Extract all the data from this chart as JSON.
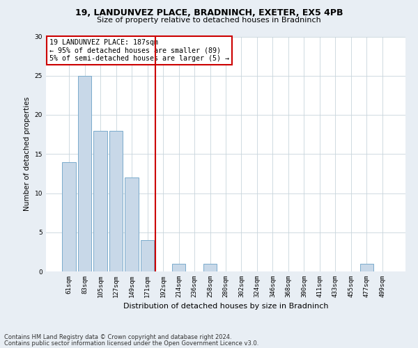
{
  "title1": "19, LANDUNVEZ PLACE, BRADNINCH, EXETER, EX5 4PB",
  "title2": "Size of property relative to detached houses in Bradninch",
  "xlabel": "Distribution of detached houses by size in Bradninch",
  "ylabel": "Number of detached properties",
  "categories": [
    "61sqm",
    "83sqm",
    "105sqm",
    "127sqm",
    "149sqm",
    "171sqm",
    "192sqm",
    "214sqm",
    "236sqm",
    "258sqm",
    "280sqm",
    "302sqm",
    "324sqm",
    "346sqm",
    "368sqm",
    "390sqm",
    "411sqm",
    "433sqm",
    "455sqm",
    "477sqm",
    "499sqm"
  ],
  "values": [
    14,
    25,
    18,
    18,
    12,
    4,
    0,
    1,
    0,
    1,
    0,
    0,
    0,
    0,
    0,
    0,
    0,
    0,
    0,
    1,
    0
  ],
  "bar_color": "#c8d8e8",
  "bar_edge_color": "#7aabcc",
  "vline_x": 5.5,
  "vline_color": "#cc0000",
  "annotation_text": "19 LANDUNVEZ PLACE: 187sqm\n← 95% of detached houses are smaller (89)\n5% of semi-detached houses are larger (5) →",
  "annotation_box_color": "#ffffff",
  "annotation_box_edge": "#cc0000",
  "ylim": [
    0,
    30
  ],
  "yticks": [
    0,
    5,
    10,
    15,
    20,
    25,
    30
  ],
  "footer1": "Contains HM Land Registry data © Crown copyright and database right 2024.",
  "footer2": "Contains public sector information licensed under the Open Government Licence v3.0.",
  "bg_color": "#e8eef4",
  "plot_bg_color": "#ffffff",
  "grid_color": "#c8d4dc",
  "title1_fontsize": 9,
  "title2_fontsize": 8,
  "annotation_fontsize": 7.2,
  "xlabel_fontsize": 8,
  "ylabel_fontsize": 7.5,
  "tick_fontsize": 6.5
}
